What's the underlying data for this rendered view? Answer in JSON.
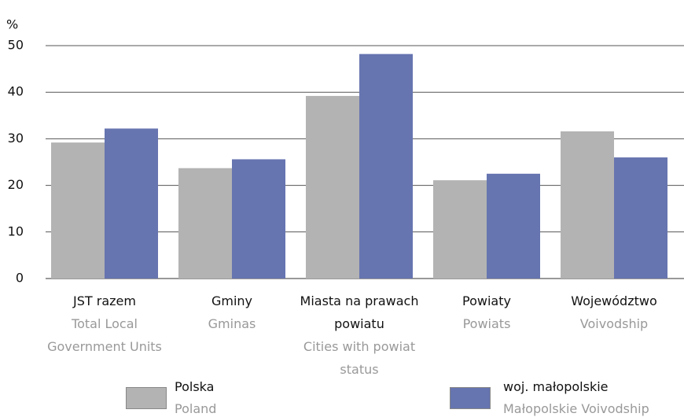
{
  "chart_data": {
    "type": "bar",
    "ylabel": "%",
    "categories": [
      "JST razem",
      "Gminy",
      "Miasta na prawach powiatu",
      "Powiaty",
      "Województwo"
    ],
    "categories_en": [
      "Total Local Government Units",
      "Gminas",
      "Cities with powiat status",
      "Powiats",
      "Voivodship"
    ],
    "series": [
      {
        "name": "Polska",
        "name_en": "Poland",
        "color": "#b3b3b3",
        "values": [
          29.2,
          23.7,
          39.2,
          21.1,
          31.6
        ]
      },
      {
        "name": "woj. małopolskie",
        "name_en": "Małopolskie Voivodship",
        "color": "#6674b0",
        "values": [
          32.2,
          25.6,
          48.2,
          22.5,
          26.0
        ]
      }
    ],
    "ylim": [
      0,
      50
    ],
    "yticks": [
      0,
      10,
      20,
      30,
      40,
      50
    ],
    "grid": true
  }
}
